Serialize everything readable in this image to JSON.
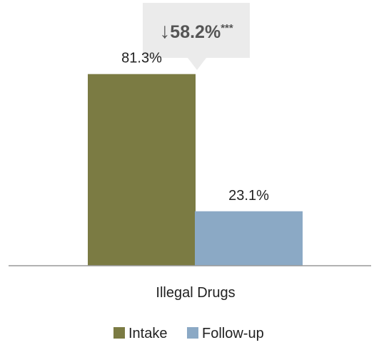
{
  "chart_data": {
    "type": "bar",
    "categories": [
      "Illegal Drugs"
    ],
    "series": [
      {
        "name": "Intake",
        "values": [
          81.3
        ],
        "labels": [
          "81.3%"
        ],
        "color": "#7b7b43"
      },
      {
        "name": "Follow-up",
        "values": [
          23.1
        ],
        "labels": [
          "23.1%"
        ],
        "color": "#8ba9c5"
      }
    ],
    "ylim": [
      0,
      100
    ],
    "grid": false,
    "legend_position": "bottom-center",
    "annotation": {
      "arrow": "↓",
      "value": "58.2%",
      "significance": "***",
      "text_color": "#555555",
      "box_color": "#ebebeb"
    },
    "axis_color": "#999999"
  }
}
